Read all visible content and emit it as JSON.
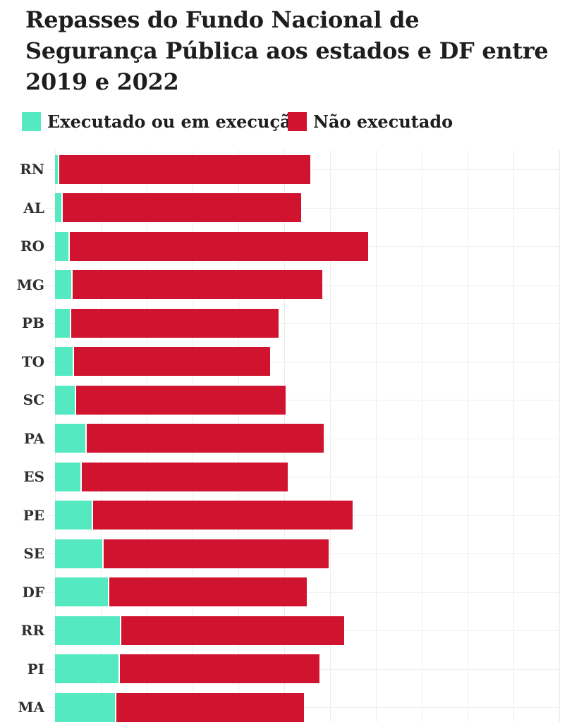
{
  "title": {
    "lines": [
      "Repasses do Fundo Nacional de",
      "Segurança Pública aos estados e DF entre",
      "2019 e 2022"
    ]
  },
  "legend": {
    "items": [
      {
        "label": "Executado ou em execução",
        "color": "#55e9c2"
      },
      {
        "label": "Não executado",
        "color": "#d0132e"
      }
    ]
  },
  "colors": {
    "executed": "#55e9c2",
    "not_executed": "#d0132e",
    "grid_vertical": "#ededed",
    "grid_horizontal": "#f0f0f0",
    "title_text": "#1e1e1e",
    "label_text": "#2f2f2f",
    "background": "#ffffff"
  },
  "chart_data": {
    "type": "bar",
    "orientation": "horizontal",
    "stacked": true,
    "title": "Repasses do Fundo Nacional de Segurança Pública aos estados e DF entre 2019 e 2022",
    "categories": [
      "RN",
      "AL",
      "RO",
      "MG",
      "PB",
      "TO",
      "SC",
      "PA",
      "ES",
      "PE",
      "SE",
      "DF",
      "RR",
      "PI",
      "MA"
    ],
    "series": [
      {
        "name": "Executado ou em execução",
        "color": "#55e9c2",
        "values": [
          0.09,
          0.17,
          0.32,
          0.38,
          0.35,
          0.42,
          0.46,
          0.69,
          0.58,
          0.83,
          1.06,
          1.18,
          1.45,
          1.42,
          1.34
        ]
      },
      {
        "name": "Não executado",
        "color": "#d0132e",
        "values": [
          5.48,
          5.2,
          6.51,
          5.45,
          4.52,
          4.28,
          4.57,
          5.17,
          4.49,
          5.66,
          4.91,
          4.32,
          4.85,
          4.35,
          4.09
        ]
      }
    ],
    "xlabel": "",
    "ylabel": "",
    "xlim": [
      0,
      11
    ],
    "x_tick_labels": [],
    "grid": true,
    "legend_position": "top",
    "units_note": "axis has no numeric labels; values estimated in gridline intervals (1 unit = 1 vertical gridline spacing)"
  }
}
